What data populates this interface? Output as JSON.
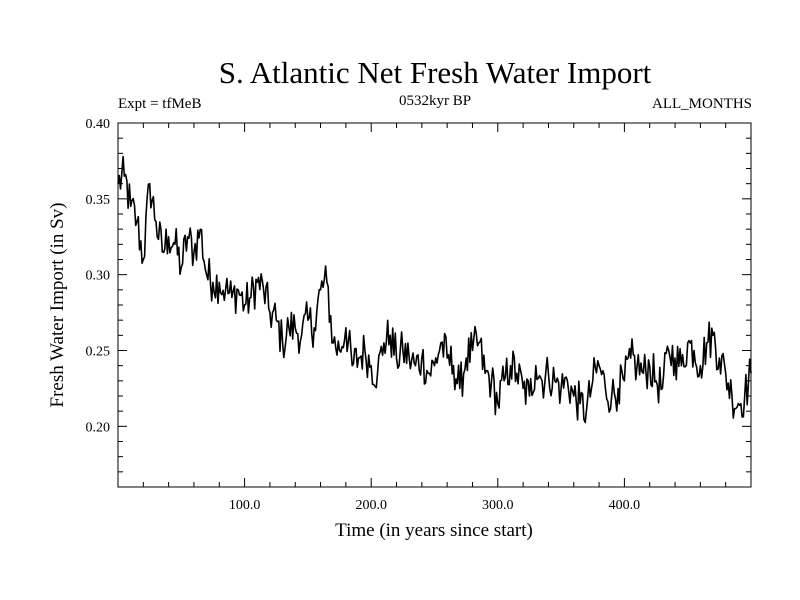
{
  "chart_data": {
    "type": "line",
    "title": "S. Atlantic Net Fresh Water Import",
    "subtitle_left": "Expt = tfMeB",
    "subtitle_center": "0532kyr BP",
    "subtitle_right": "ALL_MONTHS",
    "xlabel": "Time (in years since start)",
    "ylabel": "Fresh Water Import (in Sv)",
    "xlim": [
      0,
      500
    ],
    "ylim": [
      0.16,
      0.4
    ],
    "xticks_major": [
      100,
      200,
      300,
      400
    ],
    "xtick_labels": [
      "100.0",
      "200.0",
      "300.0",
      "400.0"
    ],
    "yticks_major": [
      0.2,
      0.25,
      0.3,
      0.35,
      0.4
    ],
    "ytick_labels": [
      "0.20",
      "0.25",
      "0.30",
      "0.35",
      "0.40"
    ],
    "grid": false,
    "line_color": "#000000",
    "series": [
      {
        "x": [
          0,
          5,
          10,
          15,
          20,
          25,
          30,
          35,
          40,
          45,
          50,
          55,
          60,
          65,
          70,
          75,
          80,
          85,
          90,
          95,
          100,
          105,
          110,
          115,
          120,
          125,
          130,
          135,
          140,
          145,
          150,
          155,
          160,
          165,
          170,
          175,
          180,
          185,
          190,
          195,
          200,
          205,
          210,
          215,
          220,
          225,
          230,
          235,
          240,
          245,
          250,
          255,
          260,
          265,
          270,
          275,
          280,
          285,
          290,
          295,
          300,
          305,
          310,
          315,
          320,
          325,
          330,
          335,
          340,
          345,
          350,
          355,
          360,
          365,
          370,
          375,
          380,
          385,
          390,
          395,
          400,
          405,
          410,
          415,
          420,
          425,
          430,
          435,
          440,
          445,
          450,
          455,
          460,
          465,
          470,
          475,
          480,
          485,
          490,
          495,
          500
        ],
        "values": [
          0.36,
          0.365,
          0.345,
          0.335,
          0.31,
          0.36,
          0.335,
          0.315,
          0.325,
          0.32,
          0.305,
          0.325,
          0.315,
          0.33,
          0.3,
          0.295,
          0.295,
          0.29,
          0.285,
          0.29,
          0.28,
          0.285,
          0.295,
          0.29,
          0.275,
          0.27,
          0.255,
          0.265,
          0.265,
          0.26,
          0.27,
          0.265,
          0.29,
          0.295,
          0.255,
          0.25,
          0.265,
          0.24,
          0.245,
          0.25,
          0.24,
          0.235,
          0.255,
          0.26,
          0.245,
          0.25,
          0.245,
          0.24,
          0.245,
          0.235,
          0.24,
          0.255,
          0.245,
          0.24,
          0.225,
          0.245,
          0.25,
          0.255,
          0.235,
          0.23,
          0.215,
          0.23,
          0.24,
          0.235,
          0.225,
          0.22,
          0.24,
          0.23,
          0.235,
          0.23,
          0.225,
          0.23,
          0.22,
          0.215,
          0.21,
          0.23,
          0.24,
          0.225,
          0.22,
          0.225,
          0.23,
          0.245,
          0.24,
          0.235,
          0.24,
          0.23,
          0.225,
          0.25,
          0.245,
          0.24,
          0.255,
          0.25,
          0.24,
          0.255,
          0.26,
          0.245,
          0.235,
          0.22,
          0.215,
          0.22,
          0.235
        ]
      }
    ]
  }
}
